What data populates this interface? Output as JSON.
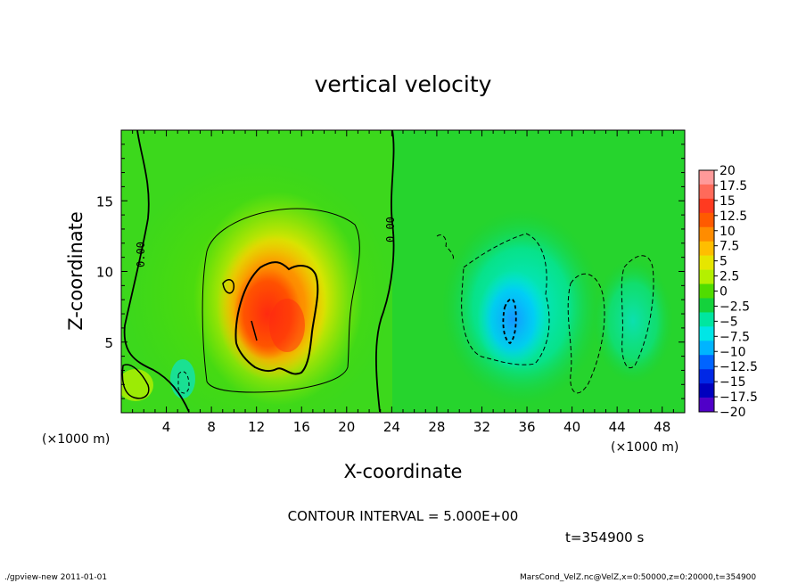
{
  "chart_data": {
    "type": "heatmap",
    "title": "vertical velocity",
    "xlabel": "X-coordinate",
    "ylabel": "Z-coordinate",
    "x_unit_left": "(×1000 m)",
    "x_unit_right": "(×1000 m)",
    "xlim": [
      0,
      50
    ],
    "ylim": [
      0,
      20
    ],
    "x_ticks": [
      4,
      8,
      12,
      16,
      20,
      24,
      28,
      32,
      36,
      40,
      44,
      48
    ],
    "y_ticks": [
      5,
      10,
      15
    ],
    "contour_interval_text": "CONTOUR INTERVAL = 5.000E+00",
    "time_text": "t=354900 s",
    "contour_zero_label": "0.00",
    "colorbar": {
      "labels": [
        "20",
        "17.5",
        "15",
        "12.5",
        "10",
        "7.5",
        "5",
        "2.5",
        "0",
        "−2.5",
        "−5",
        "−7.5",
        "−10",
        "−12.5",
        "−15",
        "−17.5",
        "−20"
      ],
      "colors": [
        "#ff9a9a",
        "#ff6a5a",
        "#ff3a20",
        "#ff5a00",
        "#ff8c00",
        "#ffbe00",
        "#e6e600",
        "#b4f000",
        "#50dc00",
        "#14d23c",
        "#00e6a0",
        "#00e6e6",
        "#00b4ff",
        "#0064ff",
        "#0028e6",
        "#0000be",
        "#5000c8"
      ]
    },
    "features": [
      {
        "name": "updraft",
        "x": 13,
        "z": 7,
        "peak": 15
      },
      {
        "name": "downdraft",
        "x": 34.5,
        "z": 7,
        "peak": -8
      }
    ]
  },
  "footer": {
    "left": "./gpview-new   2011-01-01",
    "right": "MarsCond_VelZ.nc@VelZ,x=0:50000,z=0:20000,t=354900"
  }
}
